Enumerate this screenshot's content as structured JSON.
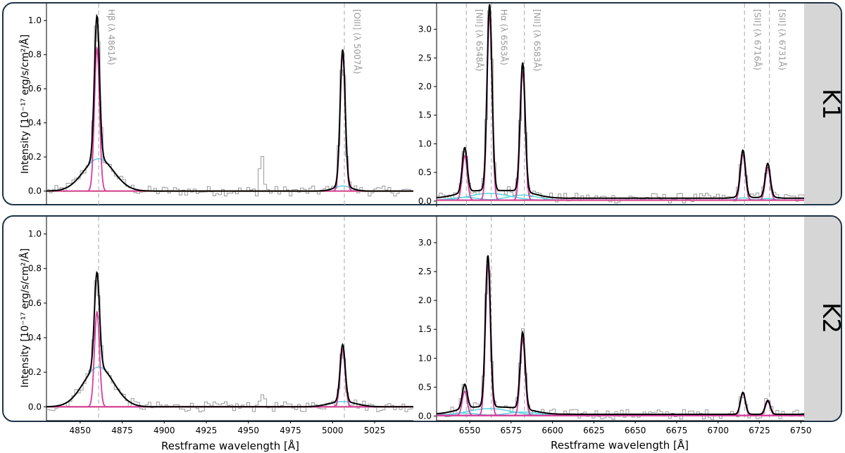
{
  "figure": {
    "xlabel": "Restframe wavelength [Å]",
    "ylabel": "Intensity [10⁻¹⁷ erg/s/cm²/Å]",
    "rows": [
      "K1",
      "K2"
    ]
  },
  "colors": {
    "total_fit": "#000000",
    "narrow": "#d63ea0",
    "broad": "#5fd6e0",
    "continuum": "#e09a3c",
    "data": "#999999",
    "refline": "#bbbbbb",
    "frame": "#1f3346",
    "label_bg": "#d6d6d6"
  },
  "chart_data": [
    {
      "id": "K1-hbeta",
      "type": "line",
      "row": "K1",
      "xlim": [
        4830,
        5048
      ],
      "ylim": [
        -0.08,
        1.1
      ],
      "yticks": [
        0.0,
        0.2,
        0.4,
        0.6,
        0.8,
        1.0
      ],
      "ytick_labels": [
        "0.0",
        "0.2",
        "0.4",
        "0.6",
        "0.8",
        "1.0"
      ],
      "xticks": [],
      "lines": [
        {
          "label": "Hβ (λ 4861Å)",
          "x": 4861
        },
        {
          "label": "[OIII] (λ 5007Å)",
          "x": 5007
        }
      ],
      "components": {
        "narrow": [
          {
            "x0": 4860,
            "amp": 0.84,
            "sigma": 1.5
          },
          {
            "x0": 5006,
            "amp": 0.8,
            "sigma": 1.5
          }
        ],
        "broad": [
          {
            "x0": 4861,
            "amp": 0.19,
            "sigma": 9
          },
          {
            "x0": 5006,
            "amp": 0.03,
            "sigma": 5
          }
        ],
        "total_peaks": [
          1.03,
          0.82
        ]
      },
      "noise_features": [
        {
          "x": 4957,
          "amp": 0.25
        }
      ]
    },
    {
      "id": "K1-halpha",
      "type": "line",
      "row": "K1",
      "xlim": [
        6530,
        6752
      ],
      "ylim": [
        -0.1,
        3.45
      ],
      "yticks": [
        0.0,
        0.5,
        1.0,
        1.5,
        2.0,
        2.5,
        3.0
      ],
      "ytick_labels": [
        "0.0",
        "0.5",
        "1.0",
        "1.5",
        "2.0",
        "2.5",
        "3.0"
      ],
      "xticks": [],
      "lines": [
        {
          "label": "[NII] (λ 6548Å)",
          "x": 6548
        },
        {
          "label": "Hα (λ 6563Å)",
          "x": 6563
        },
        {
          "label": "[NII] (λ 6583Å)",
          "x": 6583
        },
        {
          "label": "[SII] (λ 6716Å)",
          "x": 6716
        },
        {
          "label": "[SII] (λ 6731Å)",
          "x": 6731
        }
      ],
      "components": {
        "narrow": [
          {
            "x0": 6547,
            "amp": 0.78,
            "sigma": 1.5
          },
          {
            "x0": 6562,
            "amp": 3.25,
            "sigma": 1.5
          },
          {
            "x0": 6582,
            "amp": 2.25,
            "sigma": 1.5
          },
          {
            "x0": 6715,
            "amp": 0.8,
            "sigma": 1.5
          },
          {
            "x0": 6730,
            "amp": 0.58,
            "sigma": 1.5
          }
        ],
        "broad": [
          {
            "x0": 6562,
            "amp": 0.12,
            "sigma": 12
          },
          {
            "x0": 6582,
            "amp": 0.09,
            "sigma": 9
          },
          {
            "x0": 6547,
            "amp": 0.05,
            "sigma": 8
          },
          {
            "x0": 6715,
            "amp": 0.04,
            "sigma": 4
          },
          {
            "x0": 6730,
            "amp": 0.03,
            "sigma": 4
          }
        ],
        "continuum": 0.05
      }
    },
    {
      "id": "K2-hbeta",
      "type": "line",
      "row": "K2",
      "xlim": [
        4830,
        5048
      ],
      "ylim": [
        -0.08,
        1.1
      ],
      "yticks": [
        0.0,
        0.2,
        0.4,
        0.6,
        0.8,
        1.0
      ],
      "ytick_labels": [
        "0.0",
        "0.2",
        "0.4",
        "0.6",
        "0.8",
        "1.0"
      ],
      "xticks": [
        4850,
        4875,
        4900,
        4925,
        4950,
        4975,
        5000,
        5025
      ],
      "xtick_labels": [
        "4850",
        "4875",
        "4900",
        "4925",
        "4950",
        "4975",
        "5000",
        "5025"
      ],
      "lines": [
        {
          "label": "",
          "x": 4861
        },
        {
          "label": "",
          "x": 5007
        }
      ],
      "components": {
        "narrow": [
          {
            "x0": 4860,
            "amp": 0.55,
            "sigma": 1.5
          },
          {
            "x0": 5006,
            "amp": 0.33,
            "sigma": 1.5
          }
        ],
        "broad": [
          {
            "x0": 4861,
            "amp": 0.23,
            "sigma": 9
          },
          {
            "x0": 5006,
            "amp": 0.03,
            "sigma": 8
          }
        ],
        "total_peaks": [
          0.78,
          0.35
        ]
      },
      "noise_features": [
        {
          "x": 4957,
          "amp": 0.11
        }
      ]
    },
    {
      "id": "K2-halpha",
      "type": "line",
      "row": "K2",
      "xlim": [
        6530,
        6752
      ],
      "ylim": [
        -0.08,
        3.45
      ],
      "yticks": [
        0.0,
        0.5,
        1.0,
        1.5,
        2.0,
        2.5,
        3.0
      ],
      "ytick_labels": [
        "0.0",
        "0.5",
        "1.0",
        "1.5",
        "2.0",
        "2.5",
        "3.0"
      ],
      "xticks": [
        6550,
        6575,
        6600,
        6625,
        6650,
        6675,
        6700,
        6725,
        6750
      ],
      "xtick_labels": [
        "6550",
        "6575",
        "6600",
        "6625",
        "6650",
        "6675",
        "6700",
        "6725",
        "6750"
      ],
      "lines": [
        {
          "label": "",
          "x": 6548
        },
        {
          "label": "",
          "x": 6563
        },
        {
          "label": "",
          "x": 6583
        },
        {
          "label": "",
          "x": 6716
        },
        {
          "label": "",
          "x": 6731
        }
      ],
      "components": {
        "narrow": [
          {
            "x0": 6547,
            "amp": 0.42,
            "sigma": 1.5
          },
          {
            "x0": 6561,
            "amp": 2.62,
            "sigma": 1.5
          },
          {
            "x0": 6582,
            "amp": 1.32,
            "sigma": 1.5
          },
          {
            "x0": 6715,
            "amp": 0.38,
            "sigma": 1.5
          },
          {
            "x0": 6730,
            "amp": 0.24,
            "sigma": 1.5
          }
        ],
        "broad": [
          {
            "x0": 6562,
            "amp": 0.12,
            "sigma": 13
          },
          {
            "x0": 6582,
            "amp": 0.06,
            "sigma": 9
          },
          {
            "x0": 6547,
            "amp": 0.04,
            "sigma": 8
          }
        ],
        "continuum": 0.03
      }
    }
  ]
}
